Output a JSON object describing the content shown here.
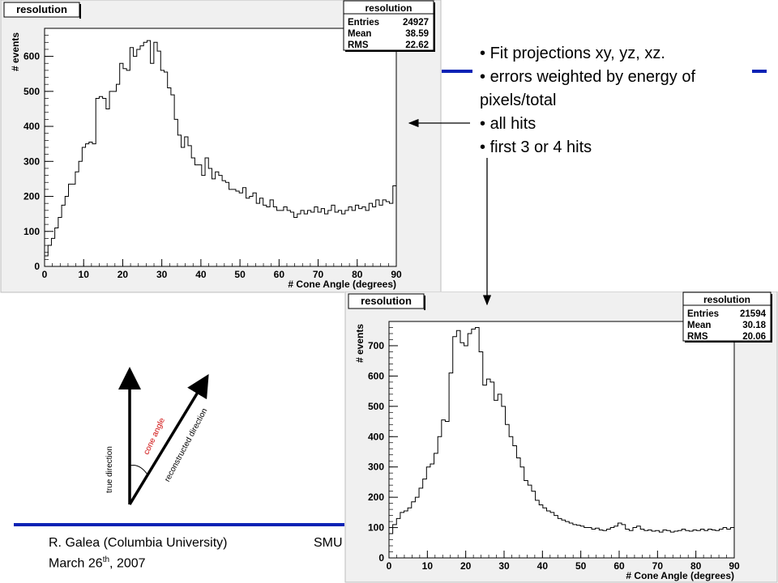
{
  "slide": {
    "bullets": [
      "Fit projections xy, yz, xz.",
      "errors weighted by energy of",
      "pixels/total",
      "all hits",
      "first 3 or 4 hits"
    ],
    "footer_author": "R. Galea (Columbia University)",
    "footer_date_prefix": "March 26",
    "footer_date_sup": "th",
    "footer_date_suffix": ", 2007",
    "footer_partial": "SMU",
    "accent_color": "#0a22b5"
  },
  "diagram": {
    "true_direction_label": "true direction",
    "reconstructed_label": "reconstructed direction",
    "cone_angle_label": "cone angle"
  },
  "chart_data": [
    {
      "type": "bar",
      "title": "resolution",
      "xlabel": "# Cone Angle (degrees)",
      "ylabel": "# events",
      "xlim": [
        0,
        90
      ],
      "ylim": [
        0,
        680
      ],
      "xticks": [
        0,
        10,
        20,
        30,
        40,
        50,
        60,
        70,
        80,
        90
      ],
      "yticks": [
        0,
        100,
        200,
        300,
        400,
        500,
        600
      ],
      "stats": {
        "title": "resolution",
        "Entries": "24927",
        "Mean": "38.59",
        "RMS": "22.62"
      },
      "bin_width": 1,
      "values": [
        30,
        60,
        80,
        110,
        140,
        175,
        200,
        235,
        235,
        270,
        300,
        340,
        350,
        355,
        350,
        480,
        485,
        480,
        450,
        500,
        500,
        520,
        580,
        565,
        560,
        625,
        600,
        620,
        630,
        640,
        645,
        580,
        640,
        615,
        560,
        555,
        510,
        490,
        420,
        375,
        340,
        370,
        345,
        310,
        290,
        290,
        260,
        310,
        280,
        250,
        270,
        260,
        245,
        240,
        220,
        220,
        215,
        210,
        225,
        195,
        200,
        210,
        180,
        195,
        175,
        170,
        190,
        170,
        160,
        160,
        170,
        160,
        155,
        140,
        150,
        160,
        150,
        160,
        155,
        170,
        155,
        165,
        150,
        160,
        175,
        155,
        160,
        150,
        160,
        170,
        160,
        175,
        165,
        170,
        160,
        180,
        170,
        190,
        175,
        190,
        185,
        180,
        230
      ]
    },
    {
      "type": "bar",
      "title": "resolution",
      "xlabel": "# Cone Angle (degrees)",
      "ylabel": "# events",
      "xlim": [
        0,
        90
      ],
      "ylim": [
        0,
        780
      ],
      "xticks": [
        0,
        10,
        20,
        30,
        40,
        50,
        60,
        70,
        80,
        90
      ],
      "yticks": [
        0,
        100,
        200,
        300,
        400,
        500,
        600,
        700
      ],
      "stats": {
        "title": "resolution",
        "Entries": "21594",
        "Mean": "30.18",
        "RMS": "20.06"
      },
      "bin_width": 1,
      "values": [
        80,
        110,
        130,
        150,
        155,
        165,
        185,
        200,
        230,
        260,
        300,
        310,
        345,
        400,
        455,
        450,
        610,
        730,
        750,
        710,
        700,
        740,
        755,
        760,
        680,
        570,
        590,
        580,
        520,
        540,
        500,
        440,
        400,
        370,
        330,
        300,
        255,
        240,
        220,
        190,
        175,
        165,
        155,
        150,
        140,
        130,
        125,
        120,
        115,
        110,
        108,
        105,
        100,
        100,
        95,
        98,
        92,
        90,
        95,
        100,
        105,
        115,
        110,
        95,
        90,
        100,
        105,
        95,
        90,
        92,
        88,
        90,
        85,
        92,
        90,
        85,
        88,
        90,
        95,
        90,
        88,
        92,
        90,
        95,
        90,
        95,
        92,
        90,
        95,
        100,
        95,
        100
      ]
    }
  ]
}
